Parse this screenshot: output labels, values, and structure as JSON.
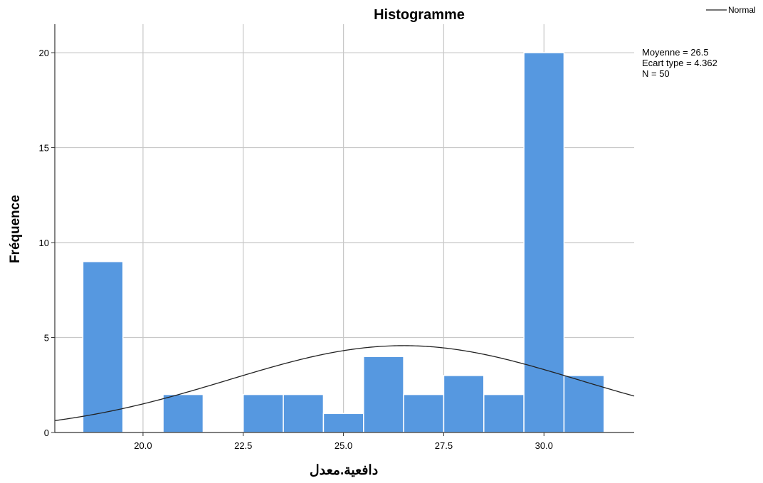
{
  "chart_data": {
    "type": "bar",
    "title": "Histogramme",
    "xlabel": "دافعية.معدل",
    "ylabel": "Fréquence",
    "bin_width": 1,
    "bins": [
      {
        "center": 19.0,
        "count": 9
      },
      {
        "center": 21.0,
        "count": 2
      },
      {
        "center": 23.0,
        "count": 2
      },
      {
        "center": 24.0,
        "count": 2
      },
      {
        "center": 25.0,
        "count": 1
      },
      {
        "center": 26.0,
        "count": 4
      },
      {
        "center": 27.0,
        "count": 2
      },
      {
        "center": 28.0,
        "count": 3
      },
      {
        "center": 29.0,
        "count": 2
      },
      {
        "center": 30.0,
        "count": 20
      },
      {
        "center": 31.0,
        "count": 3
      }
    ],
    "xlim": [
      17.8,
      32.25
    ],
    "ylim": [
      0,
      21.5
    ],
    "xticks": [
      20.0,
      22.5,
      25.0,
      27.5,
      30.0
    ],
    "xtick_labels": [
      "20.0",
      "22.5",
      "25.0",
      "27.5",
      "30.0"
    ],
    "yticks": [
      0,
      5,
      10,
      15,
      20
    ],
    "ytick_labels": [
      "0",
      "5",
      "10",
      "15",
      "20"
    ],
    "grid": true,
    "normal_curve": {
      "mean": 26.5,
      "sd": 4.362,
      "n": 50
    },
    "stats_lines": [
      "Moyenne = 26.5",
      "Ecart type = 4.362",
      "N = 50"
    ],
    "legend": {
      "entries": [
        "Normal"
      ],
      "position": "top-right"
    },
    "colors": {
      "bar": "#5698e0",
      "bar_edge": "#ffffff",
      "grid": "#c8c8c8",
      "curve": "#222222",
      "axis": "#333333"
    }
  }
}
